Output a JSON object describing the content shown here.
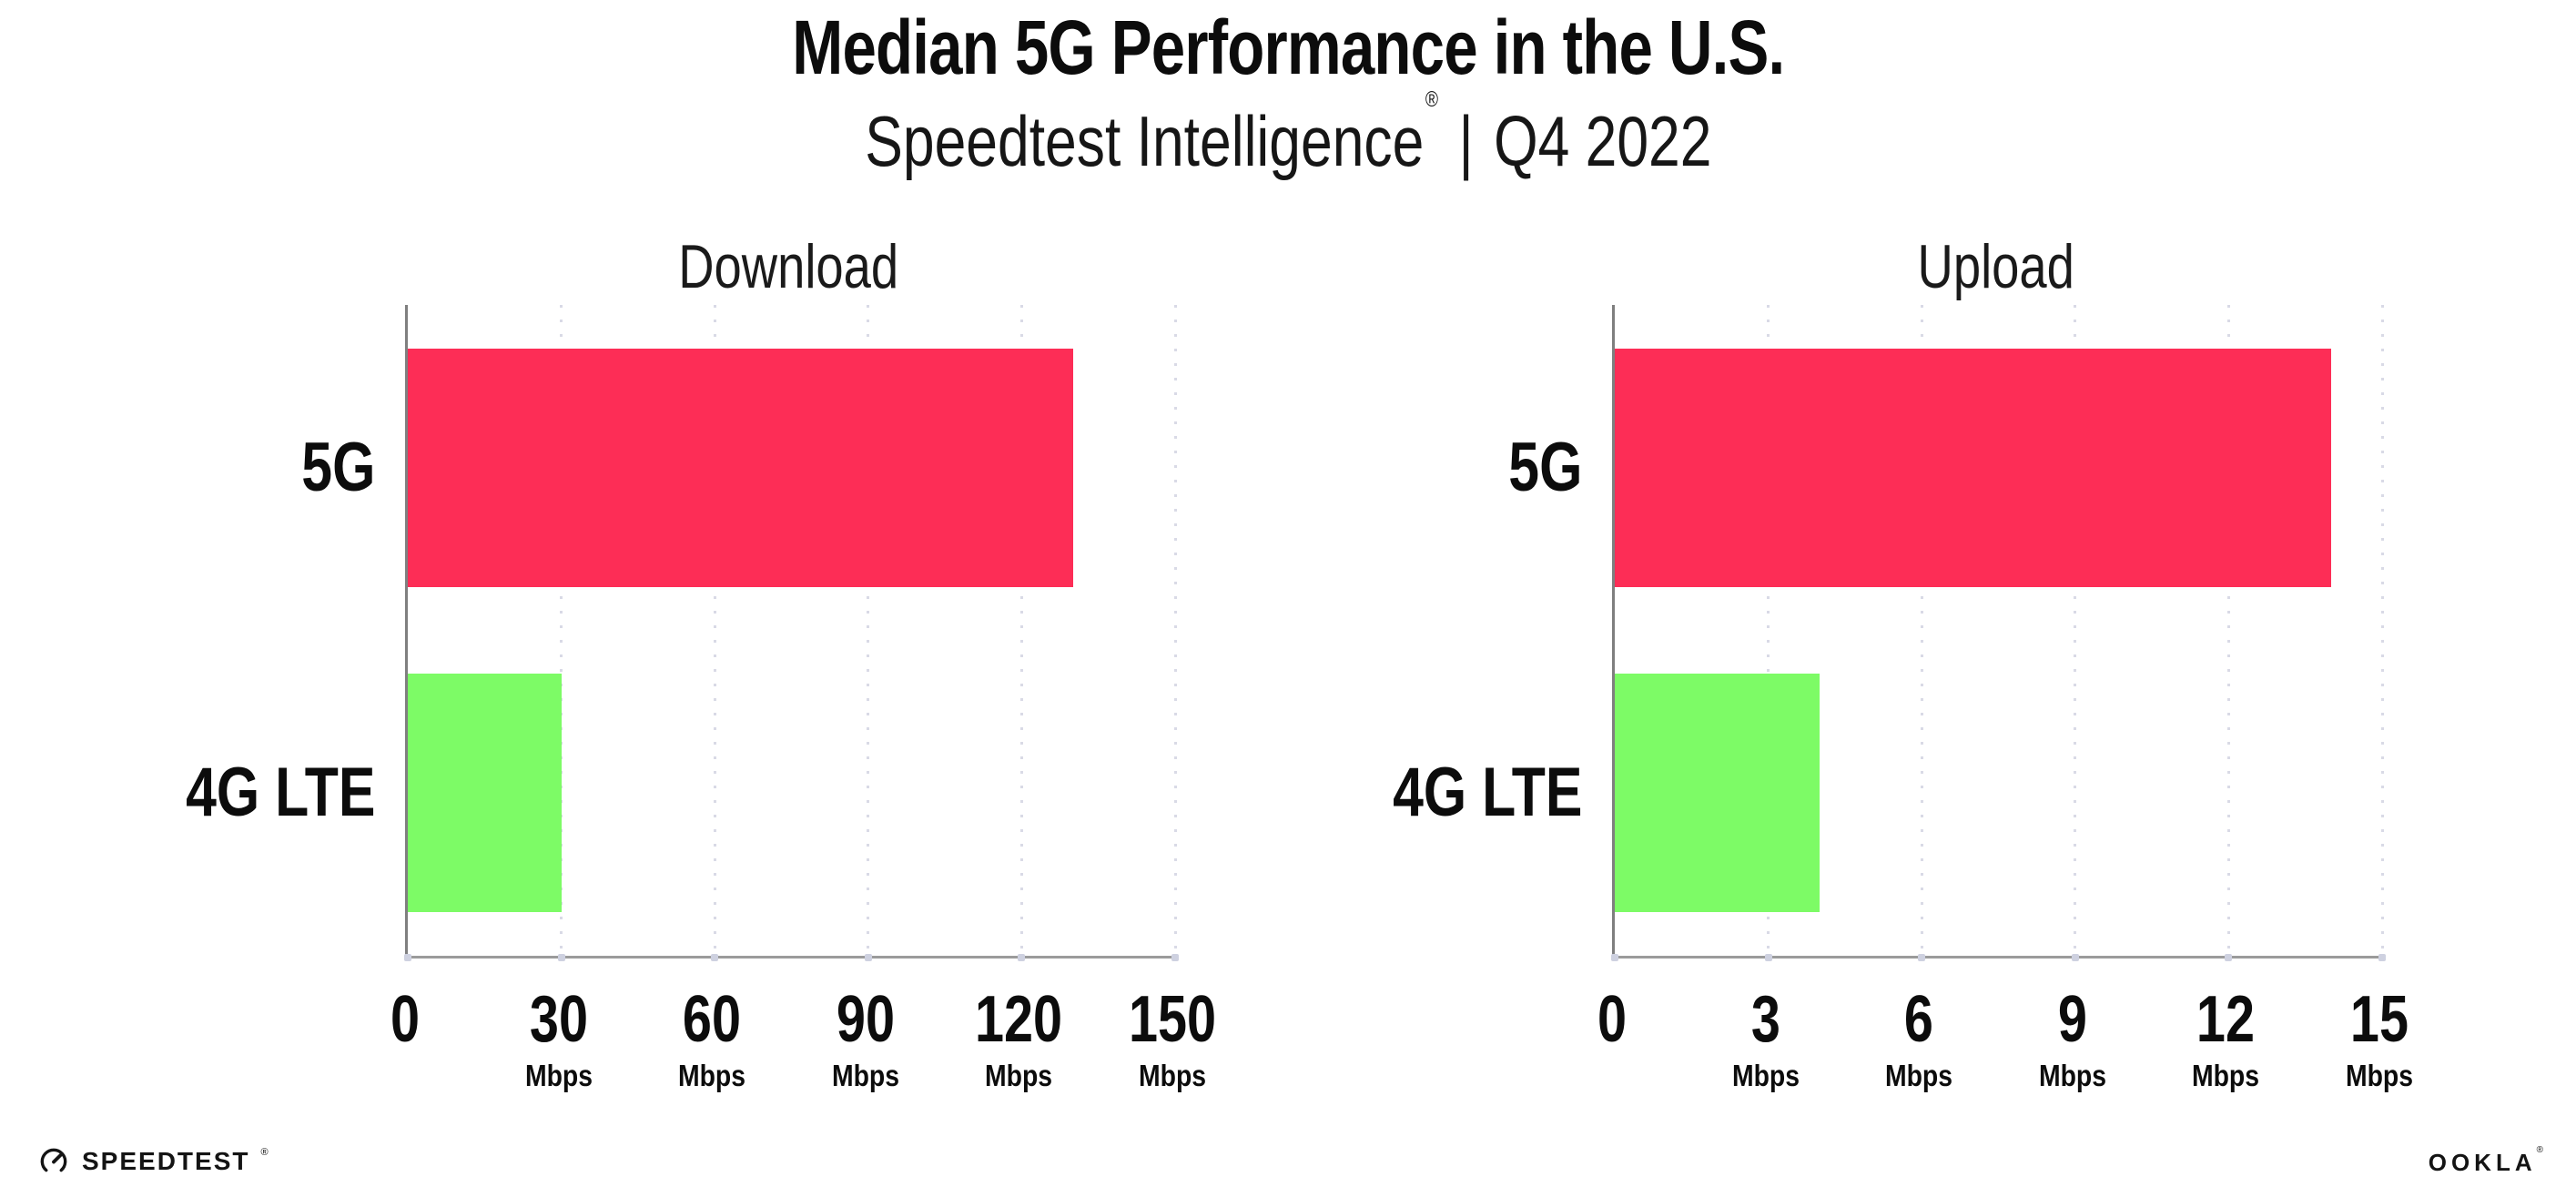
{
  "header": {
    "title": "Median 5G Performance in the U.S.",
    "subtitle": {
      "brand": "Speedtest Intelligence",
      "registered_mark": "®",
      "separator": "|",
      "period": "Q4 2022"
    }
  },
  "colors": {
    "bar_5g": "#FD2D56",
    "bar_4g_lte": "#7DFB66",
    "axis_y": "#7F7F7F",
    "axis_x": "#9B9B9B",
    "gridline_dots": "#D9DAE6",
    "axis_tick_dots": "#CED1E0",
    "text": "#0C0C0C"
  },
  "chart_data": [
    {
      "type": "bar",
      "orientation": "horizontal",
      "title": "Download",
      "categories": [
        "5G",
        "4G LTE"
      ],
      "values": [
        130,
        30
      ],
      "unit": "Mbps",
      "xlim": [
        0,
        150
      ],
      "xticks": [
        0,
        30,
        60,
        90,
        120,
        150
      ],
      "tick_unit_label": "Mbps",
      "grid": "vertical dotted",
      "legend_position": "none",
      "bar_colors": [
        "#FD2D56",
        "#7DFB66"
      ]
    },
    {
      "type": "bar",
      "orientation": "horizontal",
      "title": "Upload",
      "categories": [
        "5G",
        "4G LTE"
      ],
      "values": [
        14,
        4
      ],
      "unit": "Mbps",
      "xlim": [
        0,
        15
      ],
      "xticks": [
        0,
        3,
        6,
        9,
        12,
        15
      ],
      "tick_unit_label": "Mbps",
      "grid": "vertical dotted",
      "legend_position": "none",
      "bar_colors": [
        "#FD2D56",
        "#7DFB66"
      ]
    }
  ],
  "footer": {
    "speedtest_logo": "SPEEDTEST",
    "speedtest_mark": "®",
    "ookla_logo": "OOKLA",
    "ookla_mark": "®"
  }
}
